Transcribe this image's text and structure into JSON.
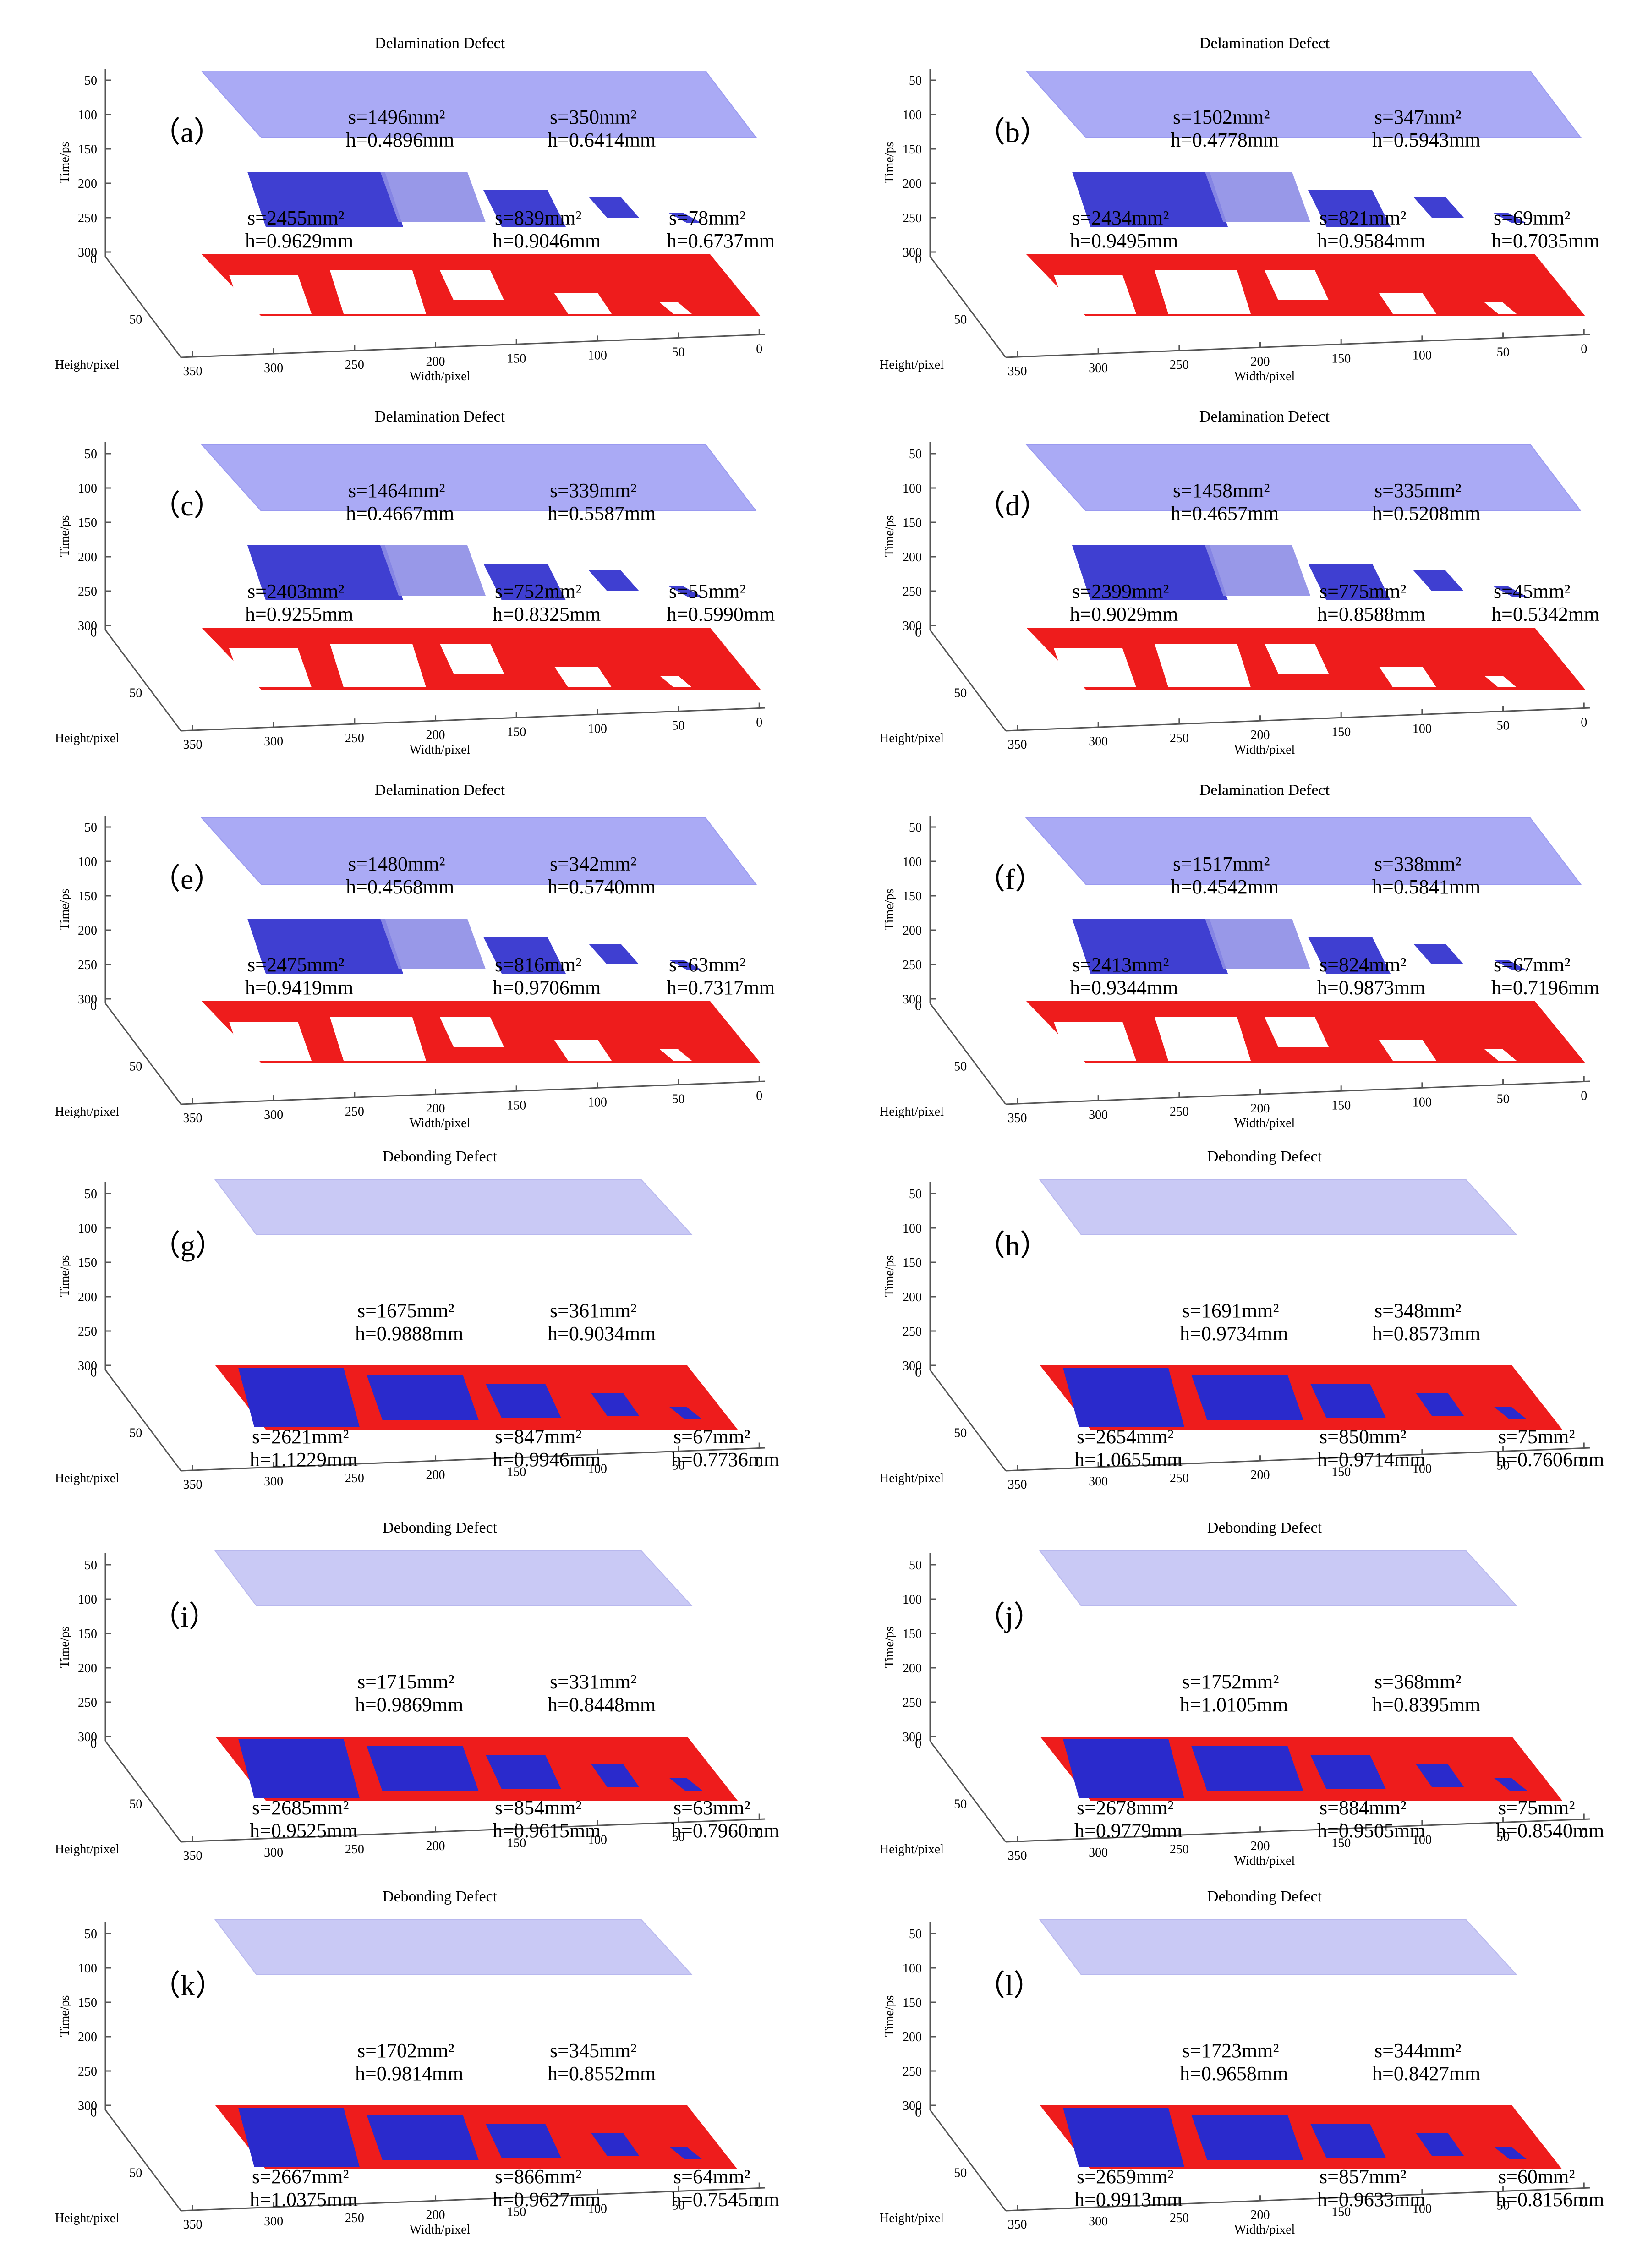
{
  "colors": {
    "top_layer": "#aaaaf5",
    "top_layer_edge": "#9a9af0",
    "bottom_layer": "#ee1c1c",
    "defect_blue": "#2a2acc",
    "defect_light": "#8d8de6",
    "axis": "#555555",
    "text": "#000000"
  },
  "chart_data": [
    {
      "type": "3d-surface",
      "panel_label": "（a）",
      "title": "Delamination Defect",
      "zlabel": "Time/ps",
      "xlabel": "Width/pixel",
      "ylabel": "Height/pixel",
      "z_ticks": [
        "50",
        "100",
        "150",
        "200",
        "250",
        "300"
      ],
      "x_ticks": [
        "350",
        "300",
        "250",
        "200",
        "150",
        "100",
        "50",
        "0"
      ],
      "y_ticks": [
        "0",
        "50"
      ],
      "defect_class": "delamination",
      "upper_annotations": [
        {
          "s": "s=1496mm²",
          "h": "h=0.4896mm"
        },
        {
          "s": "s=350mm²",
          "h": "h=0.6414mm"
        }
      ],
      "lower_annotations": [
        {
          "s": "s=2455mm²",
          "h": "h=0.9629mm"
        },
        {
          "s": "s=839mm²",
          "h": "h=0.9046mm"
        },
        {
          "s": "s=78mm²",
          "h": "h=0.6737mm"
        }
      ]
    },
    {
      "type": "3d-surface",
      "panel_label": "（b）",
      "title": "Delamination Defect",
      "zlabel": "Time/ps",
      "xlabel": "Width/pixel",
      "ylabel": "Height/pixel",
      "z_ticks": [
        "50",
        "100",
        "150",
        "200",
        "250",
        "300"
      ],
      "x_ticks": [
        "350",
        "300",
        "250",
        "200",
        "150",
        "100",
        "50",
        "0"
      ],
      "y_ticks": [
        "0",
        "50"
      ],
      "defect_class": "delamination",
      "upper_annotations": [
        {
          "s": "s=1502mm²",
          "h": "h=0.4778mm"
        },
        {
          "s": "s=347mm²",
          "h": "h=0.5943mm"
        }
      ],
      "lower_annotations": [
        {
          "s": "s=2434mm²",
          "h": "h=0.9495mm"
        },
        {
          "s": "s=821mm²",
          "h": "h=0.9584mm"
        },
        {
          "s": "s=69mm²",
          "h": "h=0.7035mm"
        }
      ]
    },
    {
      "type": "3d-surface",
      "panel_label": "（c）",
      "title": "Delamination Defect",
      "zlabel": "Time/ps",
      "xlabel": "Width/pixel",
      "ylabel": "Height/pixel",
      "z_ticks": [
        "50",
        "100",
        "150",
        "200",
        "250",
        "300"
      ],
      "x_ticks": [
        "350",
        "300",
        "250",
        "200",
        "150",
        "100",
        "50",
        "0"
      ],
      "y_ticks": [
        "0",
        "50"
      ],
      "defect_class": "delamination",
      "upper_annotations": [
        {
          "s": "s=1464mm²",
          "h": "h=0.4667mm"
        },
        {
          "s": "s=339mm²",
          "h": "h=0.5587mm"
        }
      ],
      "lower_annotations": [
        {
          "s": "s=2403mm²",
          "h": "h=0.9255mm"
        },
        {
          "s": "s=752mm²",
          "h": "h=0.8325mm"
        },
        {
          "s": "s=55mm²",
          "h": "h=0.5990mm"
        }
      ]
    },
    {
      "type": "3d-surface",
      "panel_label": "（d）",
      "title": "Delamination Defect",
      "zlabel": "Time/ps",
      "xlabel": "Width/pixel",
      "ylabel": "Height/pixel",
      "z_ticks": [
        "50",
        "100",
        "150",
        "200",
        "250",
        "300"
      ],
      "x_ticks": [
        "350",
        "300",
        "250",
        "200",
        "150",
        "100",
        "50",
        "0"
      ],
      "y_ticks": [
        "0",
        "50"
      ],
      "defect_class": "delamination",
      "upper_annotations": [
        {
          "s": "s=1458mm²",
          "h": "h=0.4657mm"
        },
        {
          "s": "s=335mm²",
          "h": "h=0.5208mm"
        }
      ],
      "lower_annotations": [
        {
          "s": "s=2399mm²",
          "h": "h=0.9029mm"
        },
        {
          "s": "s=775mm²",
          "h": "h=0.8588mm"
        },
        {
          "s": "s=45mm²",
          "h": "h=0.5342mm"
        }
      ]
    },
    {
      "type": "3d-surface",
      "panel_label": "（e）",
      "title": "Delamination Defect",
      "zlabel": "Time/ps",
      "xlabel": "Width/pixel",
      "ylabel": "Height/pixel",
      "z_ticks": [
        "50",
        "100",
        "150",
        "200",
        "250",
        "300"
      ],
      "x_ticks": [
        "350",
        "300",
        "250",
        "200",
        "150",
        "100",
        "50",
        "0"
      ],
      "y_ticks": [
        "0",
        "50"
      ],
      "defect_class": "delamination",
      "upper_annotations": [
        {
          "s": "s=1480mm²",
          "h": "h=0.4568mm"
        },
        {
          "s": "s=342mm²",
          "h": "h=0.5740mm"
        }
      ],
      "lower_annotations": [
        {
          "s": "s=2475mm²",
          "h": "h=0.9419mm"
        },
        {
          "s": "s=816mm²",
          "h": "h=0.9706mm"
        },
        {
          "s": "s=63mm²",
          "h": "h=0.7317mm"
        }
      ]
    },
    {
      "type": "3d-surface",
      "panel_label": "（f）",
      "title": "Delamination Defect",
      "zlabel": "Time/ps",
      "xlabel": "Width/pixel",
      "ylabel": "Height/pixel",
      "z_ticks": [
        "50",
        "100",
        "150",
        "200",
        "250",
        "300"
      ],
      "x_ticks": [
        "350",
        "300",
        "250",
        "200",
        "150",
        "100",
        "50",
        "0"
      ],
      "y_ticks": [
        "0",
        "50"
      ],
      "defect_class": "delamination",
      "upper_annotations": [
        {
          "s": "s=1517mm²",
          "h": "h=0.4542mm"
        },
        {
          "s": "s=338mm²",
          "h": "h=0.5841mm"
        }
      ],
      "lower_annotations": [
        {
          "s": "s=2413mm²",
          "h": "h=0.9344mm"
        },
        {
          "s": "s=824mm²",
          "h": "h=0.9873mm"
        },
        {
          "s": "s=67mm²",
          "h": "h=0.7196mm"
        }
      ]
    },
    {
      "type": "3d-surface",
      "panel_label": "（g）",
      "title": "Debonding Defect",
      "zlabel": "Time/ps",
      "xlabel": "",
      "ylabel": "Height/pixel",
      "z_ticks": [
        "50",
        "100",
        "150",
        "200",
        "250",
        "300"
      ],
      "x_ticks": [
        "350",
        "300",
        "250",
        "200",
        "150",
        "100",
        "50",
        "0"
      ],
      "y_ticks": [
        "0",
        "50"
      ],
      "defect_class": "debonding",
      "upper_annotations": [
        {
          "s": "s=1675mm²",
          "h": "h=0.9888mm"
        },
        {
          "s": "s=361mm²",
          "h": "h=0.9034mm"
        }
      ],
      "lower_annotations": [
        {
          "s": "s=2621mm²",
          "h": "h=1.1229mm"
        },
        {
          "s": "s=847mm²",
          "h": "h=0.9946mm"
        },
        {
          "s": "s=67mm²",
          "h": "h=0.7736mm"
        }
      ]
    },
    {
      "type": "3d-surface",
      "panel_label": "（h）",
      "title": "Debonding Defect",
      "zlabel": "Time/ps",
      "xlabel": "",
      "ylabel": "Height/pixel",
      "z_ticks": [
        "50",
        "100",
        "150",
        "200",
        "250",
        "300"
      ],
      "x_ticks": [
        "350",
        "300",
        "250",
        "200",
        "150",
        "100",
        "50",
        "0"
      ],
      "y_ticks": [
        "0",
        "50"
      ],
      "defect_class": "debonding",
      "upper_annotations": [
        {
          "s": "s=1691mm²",
          "h": "h=0.9734mm"
        },
        {
          "s": "s=348mm²",
          "h": "h=0.8573mm"
        }
      ],
      "lower_annotations": [
        {
          "s": "s=2654mm²",
          "h": "h=1.0655mm"
        },
        {
          "s": "s=850mm²",
          "h": "h=0.9714mm"
        },
        {
          "s": "s=75mm²",
          "h": "h=0.7606mm"
        }
      ]
    },
    {
      "type": "3d-surface",
      "panel_label": "（i）",
      "title": "Debonding Defect",
      "zlabel": "Time/ps",
      "xlabel": "",
      "ylabel": "Height/pixel",
      "z_ticks": [
        "50",
        "100",
        "150",
        "200",
        "250",
        "300"
      ],
      "x_ticks": [
        "350",
        "300",
        "250",
        "200",
        "150",
        "100",
        "50",
        "0"
      ],
      "y_ticks": [
        "0",
        "50"
      ],
      "defect_class": "debonding",
      "upper_annotations": [
        {
          "s": "s=1715mm²",
          "h": "h=0.9869mm"
        },
        {
          "s": "s=331mm²",
          "h": "h=0.8448mm"
        }
      ],
      "lower_annotations": [
        {
          "s": "s=2685mm²",
          "h": "h=0.9525mm"
        },
        {
          "s": "s=854mm²",
          "h": "h=0.9615mm"
        },
        {
          "s": "s=63mm²",
          "h": "h=0.7960mm"
        }
      ]
    },
    {
      "type": "3d-surface",
      "panel_label": "（j）",
      "title": "Debonding Defect",
      "zlabel": "Time/ps",
      "xlabel": "Width/pixel",
      "ylabel": "Height/pixel",
      "z_ticks": [
        "50",
        "100",
        "150",
        "200",
        "250",
        "300"
      ],
      "x_ticks": [
        "350",
        "300",
        "250",
        "200",
        "150",
        "100",
        "50",
        "0"
      ],
      "y_ticks": [
        "0",
        "50"
      ],
      "defect_class": "debonding",
      "upper_annotations": [
        {
          "s": "s=1752mm²",
          "h": "h=1.0105mm"
        },
        {
          "s": "s=368mm²",
          "h": "h=0.8395mm"
        }
      ],
      "lower_annotations": [
        {
          "s": "s=2678mm²",
          "h": "h=0.9779mm"
        },
        {
          "s": "s=884mm²",
          "h": "h=0.9505mm"
        },
        {
          "s": "s=75mm²",
          "h": "h=0.8540mm"
        }
      ]
    },
    {
      "type": "3d-surface",
      "panel_label": "（k）",
      "title": "Debonding Defect",
      "zlabel": "Time/ps",
      "xlabel": "Width/pixel",
      "ylabel": "Height/pixel",
      "z_ticks": [
        "50",
        "100",
        "150",
        "200",
        "250",
        "300"
      ],
      "x_ticks": [
        "350",
        "300",
        "250",
        "200",
        "150",
        "100",
        "50",
        "0"
      ],
      "y_ticks": [
        "0",
        "50"
      ],
      "defect_class": "debonding",
      "upper_annotations": [
        {
          "s": "s=1702mm²",
          "h": "h=0.9814mm"
        },
        {
          "s": "s=345mm²",
          "h": "h=0.8552mm"
        }
      ],
      "lower_annotations": [
        {
          "s": "s=2667mm²",
          "h": "h=1.0375mm"
        },
        {
          "s": "s=866mm²",
          "h": "h=0.9627mm"
        },
        {
          "s": "s=64mm²",
          "h": "h=0.7545mm"
        }
      ]
    },
    {
      "type": "3d-surface",
      "panel_label": "（l）",
      "title": "Debonding Defect",
      "zlabel": "Time/ps",
      "xlabel": "Width/pixel",
      "ylabel": "Height/pixel",
      "z_ticks": [
        "50",
        "100",
        "150",
        "200",
        "250",
        "300"
      ],
      "x_ticks": [
        "350",
        "300",
        "250",
        "200",
        "150",
        "100",
        "50",
        "0"
      ],
      "y_ticks": [
        "0",
        "50"
      ],
      "defect_class": "debonding",
      "upper_annotations": [
        {
          "s": "s=1723mm²",
          "h": "h=0.9658mm"
        },
        {
          "s": "s=344mm²",
          "h": "h=0.8427mm"
        }
      ],
      "lower_annotations": [
        {
          "s": "s=2659mm²",
          "h": "h=0.9913mm"
        },
        {
          "s": "s=857mm²",
          "h": "h=0.9633mm"
        },
        {
          "s": "s=60mm²",
          "h": "h=0.8156mm"
        }
      ]
    }
  ]
}
